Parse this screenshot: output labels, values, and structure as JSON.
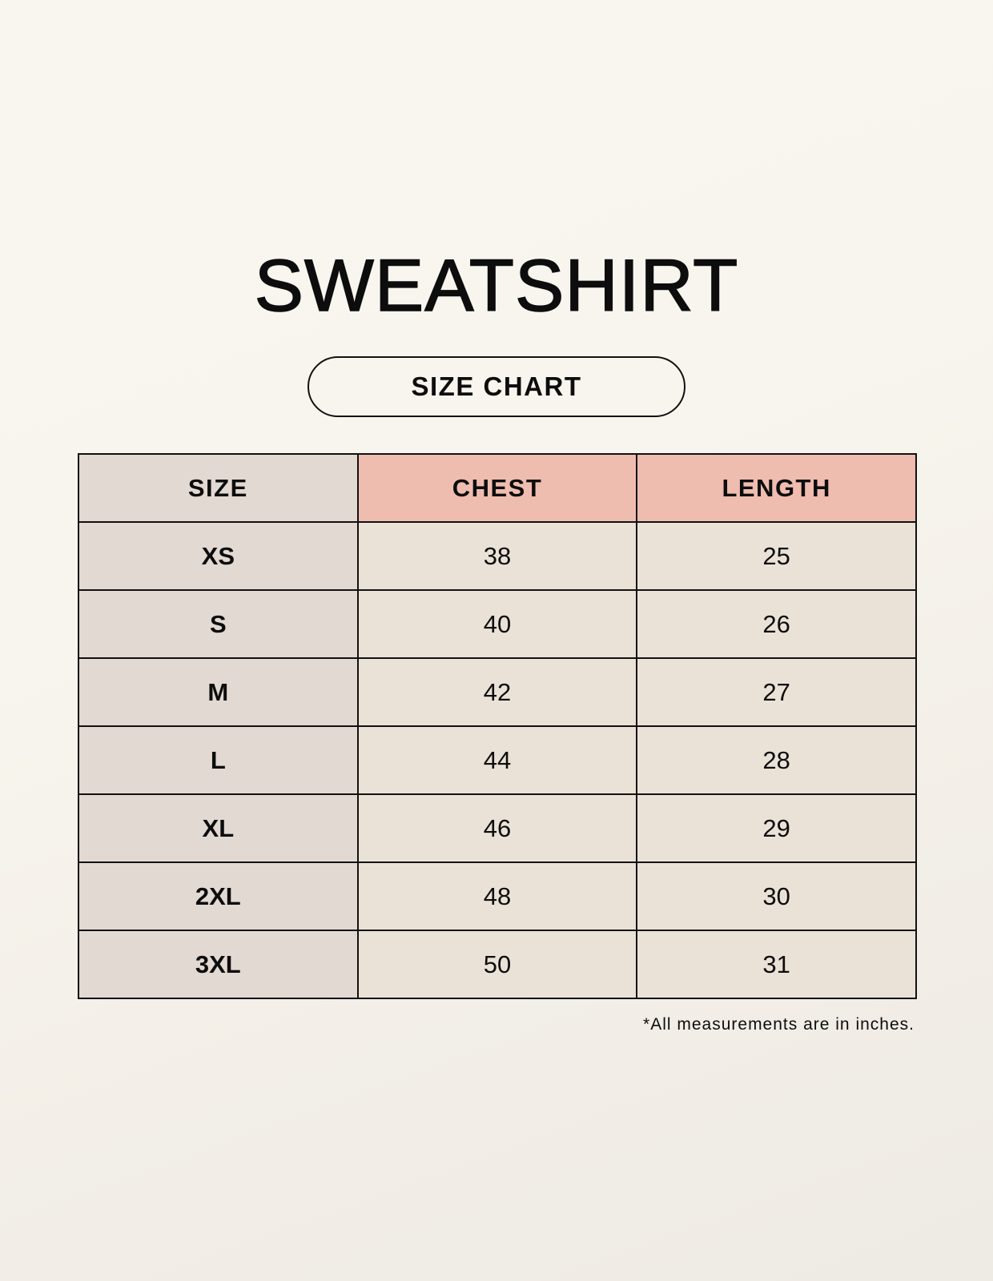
{
  "title": "SWEATSHIRT",
  "subtitle": "SIZE CHART",
  "table": {
    "headers": [
      "SIZE",
      "CHEST",
      "LENGTH"
    ],
    "rows": [
      [
        "XS",
        "38",
        "25"
      ],
      [
        "S",
        "40",
        "26"
      ],
      [
        "M",
        "42",
        "27"
      ],
      [
        "L",
        "44",
        "28"
      ],
      [
        "XL",
        "46",
        "29"
      ],
      [
        "2XL",
        "48",
        "30"
      ],
      [
        "3XL",
        "50",
        "31"
      ]
    ]
  },
  "note": "*All measurements are in inches.",
  "colors": {
    "size_column": "#e2d9d3",
    "header_accent": "#efbdb0",
    "cell": "#ebe2d7",
    "background": "#f8f5ee"
  }
}
